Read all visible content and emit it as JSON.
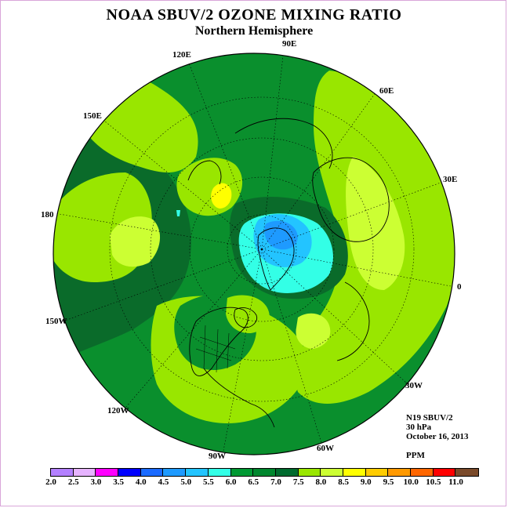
{
  "title": "NOAA SBUV/2 OZONE MIXING RATIO",
  "subtitle": "Northern Hemisphere",
  "longitude_labels": {
    "e90": "90E",
    "e120": "120E",
    "e60": "60E",
    "e150": "150E",
    "e30": "30E",
    "d180": "180",
    "d0": "0",
    "w150": "150W",
    "w30": "30W",
    "w120": "120W",
    "w60": "60W",
    "w90": "90W"
  },
  "info": {
    "satellite": "N19 SBUV/2",
    "level": "30 hPa",
    "date": "October 16, 2013",
    "units": "PPM"
  },
  "colorbar": {
    "colors": [
      "#b380ff",
      "#e6b3ff",
      "#ff00ff",
      "#0000ff",
      "#1a6aff",
      "#1e9aff",
      "#23c4ff",
      "#33ffe6",
      "#009933",
      "#00872e",
      "#006b2e",
      "#99e600",
      "#ccff33",
      "#ffff00",
      "#ffcc00",
      "#ff9900",
      "#ff6600",
      "#ff0000",
      "#7a4a2a"
    ],
    "labels": [
      "2.0",
      "2.5",
      "3.0",
      "3.5",
      "4.0",
      "4.5",
      "5.0",
      "5.5",
      "6.0",
      "6.5",
      "7.0",
      "7.5",
      "8.0",
      "8.5",
      "9.0",
      "9.5",
      "10.0",
      "10.5",
      "11.0"
    ]
  },
  "map_fill_colors": {
    "c65": "#0a8f2d",
    "c70": "#0a6b2a",
    "c75": "#99e600",
    "c80": "#ccff33",
    "c85": "#ffff00",
    "c55": "#33ffe6",
    "c50": "#23c4ff",
    "c45": "#1e9aff"
  }
}
